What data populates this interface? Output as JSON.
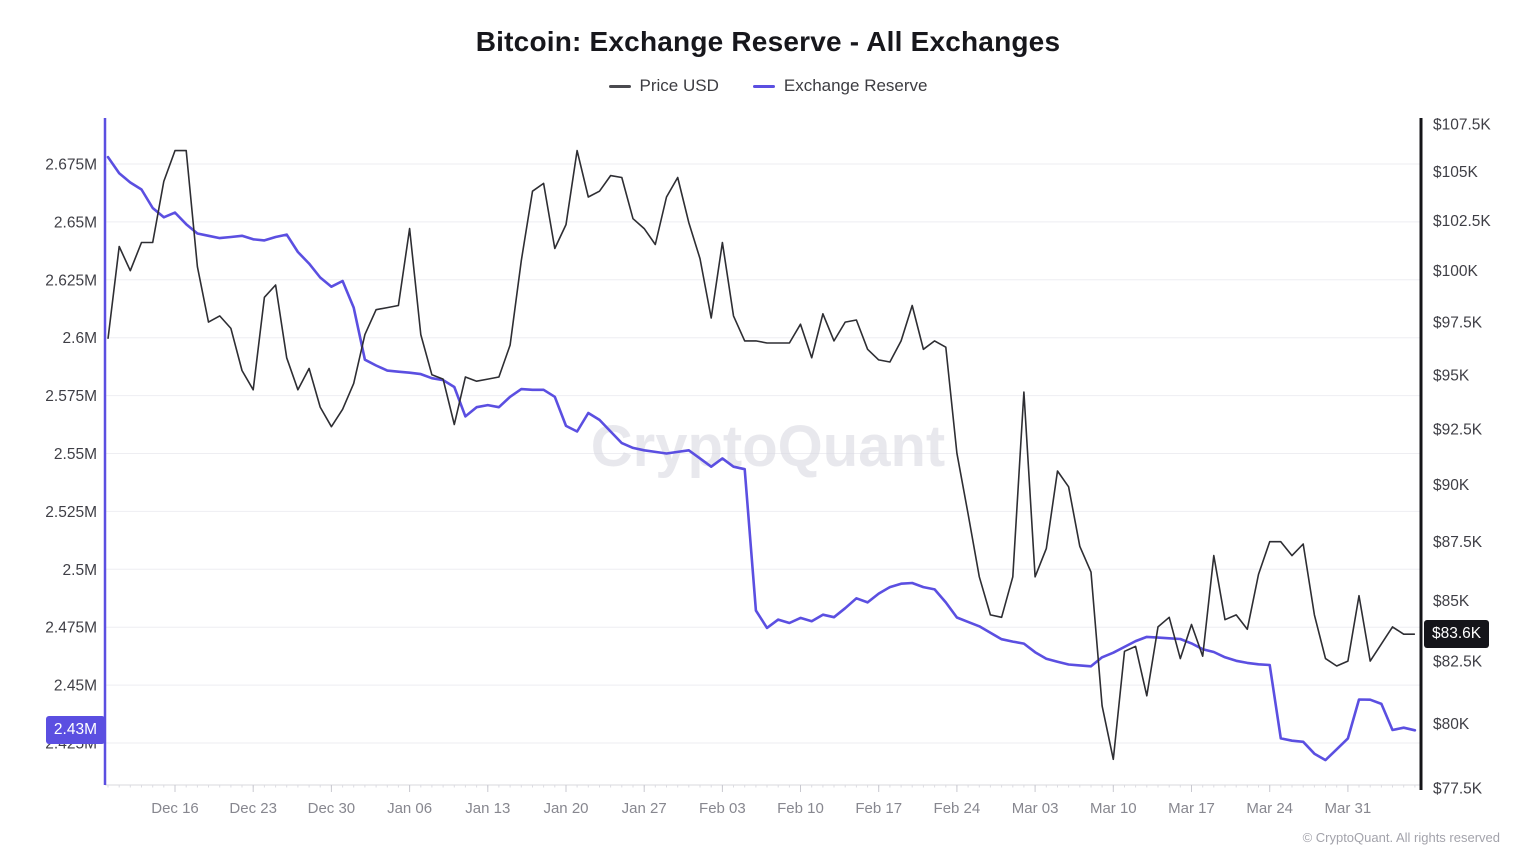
{
  "header": {
    "title": "Bitcoin: Exchange Reserve - All Exchanges",
    "legend": [
      {
        "label": "Price USD",
        "color": "#4a4a4f"
      },
      {
        "label": "Exchange Reserve",
        "color": "#5B4FE1"
      }
    ]
  },
  "watermark_text": "CryptoQuant",
  "footer_text": "© CryptoQuant. All rights reserved",
  "badges": {
    "reserve_current": "2.43M",
    "price_current": "$83.6K"
  },
  "chart_data": {
    "type": "line",
    "title": "Bitcoin: Exchange Reserve - All Exchanges",
    "legend_position": "top",
    "grid": "horizontal",
    "x_unit": "daily, day index 0 = Dec 10",
    "x_start_label": "Dec 10",
    "x_end_label": "Apr 06",
    "x_ticks": [
      {
        "label": "Dec 16",
        "day": 6
      },
      {
        "label": "Dec 23",
        "day": 13
      },
      {
        "label": "Dec 30",
        "day": 20
      },
      {
        "label": "Jan 06",
        "day": 27
      },
      {
        "label": "Jan 13",
        "day": 34
      },
      {
        "label": "Jan 20",
        "day": 41
      },
      {
        "label": "Jan 27",
        "day": 48
      },
      {
        "label": "Feb 03",
        "day": 55
      },
      {
        "label": "Feb 10",
        "day": 62
      },
      {
        "label": "Feb 17",
        "day": 69
      },
      {
        "label": "Feb 24",
        "day": 76
      },
      {
        "label": "Mar 03",
        "day": 83
      },
      {
        "label": "Mar 10",
        "day": 90
      },
      {
        "label": "Mar 17",
        "day": 97
      },
      {
        "label": "Mar 24",
        "day": 104
      },
      {
        "label": "Mar 31",
        "day": 111
      }
    ],
    "y_axis_left": {
      "name": "Exchange Reserve (million BTC)",
      "scale": "linear",
      "tick_labels": [
        "2.675M",
        "2.65M",
        "2.625M",
        "2.6M",
        "2.575M",
        "2.55M",
        "2.525M",
        "2.5M",
        "2.475M",
        "2.45M",
        "2.425M"
      ],
      "tick_values": [
        2.675,
        2.65,
        2.625,
        2.6,
        2.575,
        2.55,
        2.525,
        2.5,
        2.475,
        2.45,
        2.425
      ]
    },
    "y_axis_right": {
      "name": "Price USD",
      "scale": "log",
      "tick_labels": [
        "$107.5K",
        "$105K",
        "$102.5K",
        "$100K",
        "$97.5K",
        "$95K",
        "$92.5K",
        "$90K",
        "$87.5K",
        "$85K",
        "$82.5K",
        "$80K",
        "$77.5K"
      ],
      "tick_values": [
        107.5,
        105,
        102.5,
        100,
        97.5,
        95,
        92.5,
        90,
        87.5,
        85,
        82.5,
        80,
        77.5
      ]
    },
    "series": [
      {
        "name": "Price USD",
        "axis": "right",
        "unit": "USD thousands",
        "color": "#2e2e33",
        "last_value_label": "$83.6K",
        "values": [
          96.7,
          101.2,
          100,
          101.4,
          101.4,
          104.5,
          106.1,
          106.1,
          100.2,
          97.5,
          97.8,
          97.2,
          95.2,
          94.3,
          98.7,
          99.3,
          95.8,
          94.3,
          95.3,
          93.5,
          92.6,
          93.4,
          94.6,
          96.9,
          98.1,
          98.2,
          98.3,
          102.1,
          96.9,
          95,
          94.8,
          92.7,
          94.9,
          94.7,
          94.8,
          94.9,
          96.4,
          100.5,
          104,
          104.4,
          101.1,
          102.3,
          106.1,
          103.7,
          104,
          104.8,
          104.7,
          102.6,
          102.1,
          101.3,
          103.7,
          104.7,
          102.4,
          100.6,
          97.7,
          101.4,
          97.8,
          96.6,
          96.6,
          96.5,
          96.5,
          96.5,
          97.4,
          95.8,
          97.9,
          96.6,
          97.5,
          97.6,
          96.2,
          95.7,
          95.6,
          96.6,
          98.3,
          96.2,
          96.6,
          96.3,
          91.4,
          88.7,
          86,
          84.4,
          84.3,
          86,
          94.2,
          86,
          87.2,
          90.6,
          89.9,
          87.3,
          86.2,
          80.7,
          78.6,
          82.9,
          83.1,
          81.1,
          83.9,
          84.3,
          82.6,
          84,
          82.7,
          86.9,
          84.2,
          84.4,
          83.8,
          86.1,
          87.5,
          87.5,
          86.9,
          87.4,
          84.4,
          82.6,
          82.3,
          82.5,
          85.2,
          82.5,
          83.2,
          83.9,
          83.6,
          83.6
        ]
      },
      {
        "name": "Exchange Reserve",
        "axis": "left",
        "unit": "million BTC",
        "color": "#5B4FE1",
        "last_value_label": "2.43M",
        "values": [
          2.678,
          2.671,
          2.667,
          2.664,
          2.656,
          2.652,
          2.654,
          2.649,
          2.645,
          2.644,
          2.643,
          2.6435,
          2.644,
          2.6425,
          2.642,
          2.6435,
          2.6445,
          2.637,
          2.632,
          2.626,
          2.622,
          2.6245,
          2.613,
          2.5905,
          2.588,
          2.5858,
          2.5853,
          2.5849,
          2.5843,
          2.5825,
          2.5817,
          2.5787,
          2.566,
          2.57,
          2.5709,
          2.57,
          2.5745,
          2.5778,
          2.5775,
          2.5775,
          2.5745,
          2.5619,
          2.5595,
          2.5675,
          2.5645,
          2.5595,
          2.5545,
          2.5524,
          2.5514,
          2.5507,
          2.55,
          2.5507,
          2.5514,
          2.5479,
          2.5443,
          2.5479,
          2.5443,
          2.5432,
          2.4822,
          2.4747,
          2.4783,
          2.4768,
          2.479,
          2.4776,
          2.4804,
          2.4793,
          2.4832,
          2.4875,
          2.4857,
          2.4895,
          2.4923,
          2.4938,
          2.4941,
          2.4923,
          2.4913,
          2.4857,
          2.4792,
          2.4773,
          2.4754,
          2.4726,
          2.4698,
          2.4688,
          2.4679,
          2.4642,
          2.4614,
          2.4601,
          2.4589,
          2.4585,
          2.4581,
          2.462,
          2.464,
          2.4665,
          2.469,
          2.4708,
          2.4705,
          2.4702,
          2.4699,
          2.468,
          2.4655,
          2.4643,
          2.462,
          2.4605,
          2.4596,
          2.459,
          2.4587,
          2.427,
          2.426,
          2.4255,
          2.4204,
          2.4176,
          2.4223,
          2.427,
          2.4438,
          2.4437,
          2.4419,
          2.4306,
          2.4316,
          2.4305
        ]
      }
    ]
  }
}
